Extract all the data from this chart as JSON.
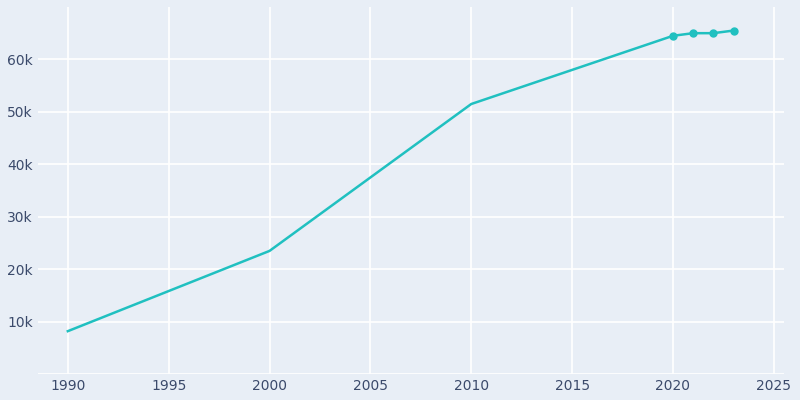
{
  "years": [
    1990,
    2000,
    2010,
    2020,
    2021,
    2022,
    2023
  ],
  "population": [
    8200,
    23500,
    51500,
    64500,
    65000,
    65000,
    65500
  ],
  "marker_years": [
    2020,
    2021,
    2022,
    2023
  ],
  "line_color": "#20C0C0",
  "marker_color": "#20C0C0",
  "fig_bg_color": "#E8EEF6",
  "plot_bg_color": "#E8EEF6",
  "grid_color": "#FFFFFF",
  "tick_color": "#3B4A6B",
  "xlim": [
    1988.5,
    2025.5
  ],
  "ylim": [
    0,
    70000
  ],
  "xticks": [
    1990,
    1995,
    2000,
    2005,
    2010,
    2015,
    2020,
    2025
  ],
  "yticks": [
    0,
    10000,
    20000,
    30000,
    40000,
    50000,
    60000
  ],
  "ytick_labels": [
    "",
    "10k",
    "20k",
    "30k",
    "40k",
    "50k",
    "60k"
  ],
  "line_width": 1.8,
  "marker_size": 5
}
